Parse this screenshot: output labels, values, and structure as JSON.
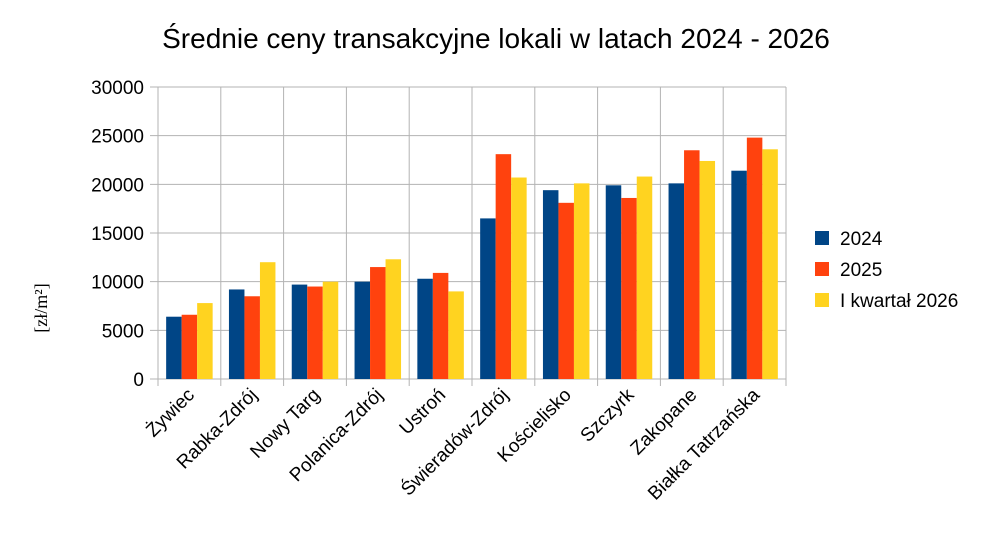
{
  "chart_data": {
    "type": "bar",
    "title": "Średnie ceny transakcyjne lokali w latach 2024 - 2026",
    "ylabel": "[zł/m²]",
    "xlabel": "",
    "ylim": [
      0,
      30000
    ],
    "yticks": [
      "0",
      "5000",
      "10000",
      "15000",
      "20000",
      "25000",
      "30000"
    ],
    "grid": true,
    "legend_position": "right",
    "categories": [
      "Żywiec",
      "Rabka-Zdrój",
      "Nowy Targ",
      "Polanica-Zdrój",
      "Ustroń",
      "Świeradów-Zdrój",
      "Kościelisko",
      "Szczyrk",
      "Zakopane",
      "Białka Tatrzańska"
    ],
    "series": [
      {
        "name": "2024",
        "color": "#004586",
        "values": [
          6400,
          9200,
          9700,
          10000,
          10300,
          16500,
          19400,
          19900,
          20100,
          21400
        ]
      },
      {
        "name": "2025",
        "color": "#ff420e",
        "values": [
          6600,
          8500,
          9500,
          11500,
          10900,
          23100,
          18100,
          18600,
          23500,
          24800
        ]
      },
      {
        "name": "I kwartał 2026",
        "color": "#ffd320",
        "values": [
          7800,
          12000,
          10000,
          12300,
          9000,
          20700,
          20100,
          20800,
          22400,
          23600
        ]
      }
    ]
  }
}
